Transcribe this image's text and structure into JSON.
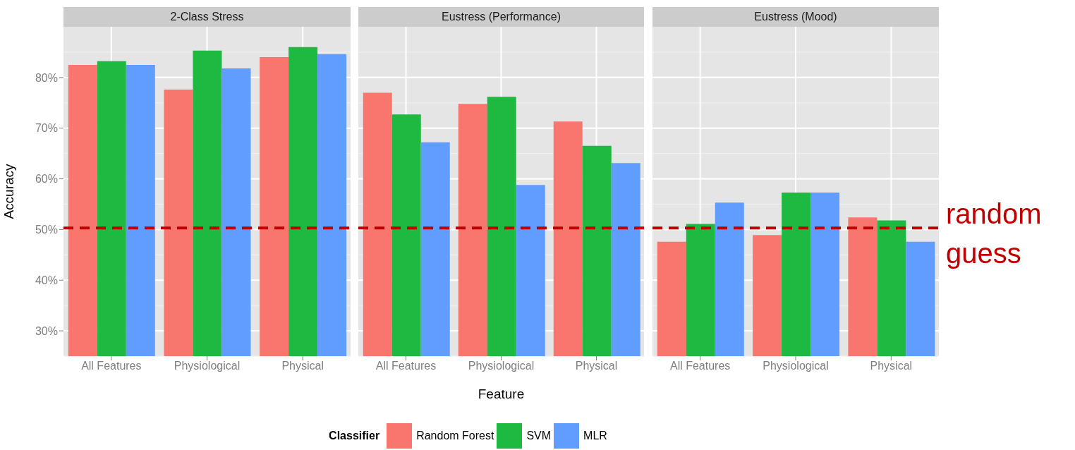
{
  "chart_data": [
    {
      "type": "bar",
      "title": "2-Class Stress",
      "ylabel": "Accuracy",
      "legend_title": "Classifier",
      "legend": "bottom",
      "categories": [
        "All Features",
        "Physiological",
        "Physical"
      ],
      "series": [
        {
          "name": "Random Forest",
          "color": "#f8766d",
          "values": [
            82.5,
            77.6,
            84.0
          ]
        },
        {
          "name": "SVM",
          "color": "#1db941",
          "values": [
            83.2,
            85.3,
            86.0
          ]
        },
        {
          "name": "MLR",
          "color": "#619cff",
          "values": [
            82.5,
            81.8,
            84.6
          ]
        }
      ],
      "ylim": [
        25,
        90
      ],
      "yticks": [
        {
          "value": 30,
          "label": "30%"
        },
        {
          "value": 40,
          "label": "40%"
        },
        {
          "value": 50,
          "label": "50%"
        },
        {
          "value": 60,
          "label": "60%"
        },
        {
          "value": 70,
          "label": "70%"
        },
        {
          "value": 80,
          "label": "80%"
        }
      ],
      "ref_lines": [
        {
          "axis": "y",
          "value": 50.3,
          "color": "#c00000",
          "line_style": "dashed"
        }
      ],
      "grid": true
    },
    {
      "type": "bar",
      "title": "Eustress (Performance)",
      "xlabel": "Feature",
      "categories": [
        "All Features",
        "Physiological",
        "Physical"
      ],
      "series": [
        {
          "color": "#f8766d",
          "values": [
            77.0,
            74.8,
            71.3
          ]
        },
        {
          "color": "#1db941",
          "values": [
            72.7,
            76.2,
            66.5
          ]
        },
        {
          "color": "#619cff",
          "values": [
            67.2,
            58.8,
            63.1
          ]
        }
      ],
      "ylim": [
        25,
        90
      ],
      "yticks": [
        {
          "value": 30,
          "label": null
        },
        {
          "value": 40,
          "label": null
        },
        {
          "value": 50,
          "label": null
        },
        {
          "value": 60,
          "label": null
        },
        {
          "value": 70,
          "label": null
        },
        {
          "value": 80,
          "label": null
        }
      ],
      "tick_labels": "x",
      "ref_lines": [
        {
          "axis": "y",
          "value": 50.3,
          "color": "#c00000",
          "line_style": "dashed"
        }
      ],
      "grid": true
    },
    {
      "type": "bar",
      "title": "Eustress (Mood)",
      "categories": [
        "All Features",
        "Physiological",
        "Physical"
      ],
      "series": [
        {
          "color": "#f8766d",
          "values": [
            47.6,
            48.9,
            52.4
          ]
        },
        {
          "color": "#1db941",
          "values": [
            51.1,
            57.3,
            51.8
          ]
        },
        {
          "color": "#619cff",
          "values": [
            55.3,
            57.3,
            47.6
          ]
        }
      ],
      "ylim": [
        25,
        90
      ],
      "yticks": [
        {
          "value": 30,
          "label": null
        },
        {
          "value": 40,
          "label": null
        },
        {
          "value": 50,
          "label": null
        },
        {
          "value": 60,
          "label": null
        },
        {
          "value": 70,
          "label": null
        },
        {
          "value": 80,
          "label": null
        }
      ],
      "tick_labels": "x",
      "ref_lines": [
        {
          "axis": "y",
          "value": 50.3,
          "label": "random guess",
          "color": "#c00000",
          "line_style": "dashed"
        }
      ],
      "grid": true
    }
  ]
}
